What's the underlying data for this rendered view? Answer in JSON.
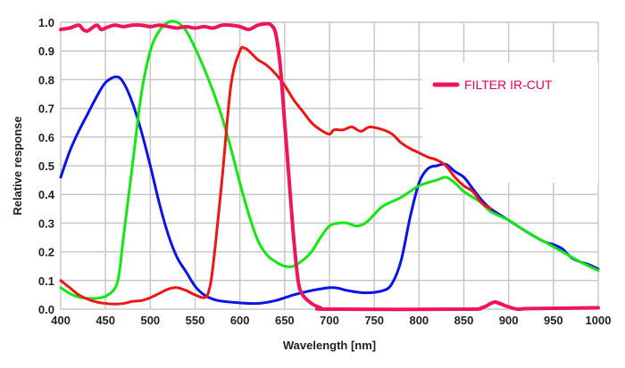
{
  "chart_data": {
    "type": "line",
    "title": "",
    "xlabel": "Wavelength [nm]",
    "ylabel": "Relative response",
    "xlim": [
      400,
      1000
    ],
    "ylim": [
      0,
      1.0
    ],
    "xticks": [
      "400",
      "450",
      "500",
      "550",
      "600",
      "650",
      "700",
      "750",
      "800",
      "850",
      "900",
      "950",
      "1000"
    ],
    "yticks": [
      "0.0",
      "0.1",
      "0.2",
      "0.3",
      "0.4",
      "0.5",
      "0.6",
      "0.7",
      "0.8",
      "0.9",
      "1.0"
    ],
    "grid": true,
    "legend": {
      "placement": "top-right",
      "entries": [
        {
          "label": "FILTER IR-CUT",
          "color": "#f0145a"
        }
      ]
    },
    "series": [
      {
        "name": "blue",
        "color": "#0a14e6",
        "points": [
          [
            400,
            0.46
          ],
          [
            410,
            0.55
          ],
          [
            420,
            0.62
          ],
          [
            430,
            0.68
          ],
          [
            440,
            0.74
          ],
          [
            450,
            0.79
          ],
          [
            462,
            0.81
          ],
          [
            470,
            0.79
          ],
          [
            480,
            0.72
          ],
          [
            490,
            0.62
          ],
          [
            500,
            0.5
          ],
          [
            510,
            0.37
          ],
          [
            520,
            0.26
          ],
          [
            530,
            0.18
          ],
          [
            540,
            0.13
          ],
          [
            550,
            0.08
          ],
          [
            560,
            0.05
          ],
          [
            570,
            0.035
          ],
          [
            580,
            0.028
          ],
          [
            600,
            0.022
          ],
          [
            620,
            0.02
          ],
          [
            640,
            0.03
          ],
          [
            660,
            0.05
          ],
          [
            680,
            0.065
          ],
          [
            700,
            0.075
          ],
          [
            710,
            0.073
          ],
          [
            720,
            0.065
          ],
          [
            740,
            0.057
          ],
          [
            760,
            0.065
          ],
          [
            770,
            0.09
          ],
          [
            780,
            0.17
          ],
          [
            790,
            0.32
          ],
          [
            800,
            0.44
          ],
          [
            810,
            0.49
          ],
          [
            820,
            0.5
          ],
          [
            830,
            0.505
          ],
          [
            840,
            0.48
          ],
          [
            850,
            0.46
          ],
          [
            860,
            0.42
          ],
          [
            870,
            0.38
          ],
          [
            880,
            0.35
          ],
          [
            900,
            0.31
          ],
          [
            920,
            0.27
          ],
          [
            940,
            0.235
          ],
          [
            950,
            0.225
          ],
          [
            960,
            0.21
          ],
          [
            970,
            0.18
          ],
          [
            980,
            0.165
          ],
          [
            990,
            0.155
          ],
          [
            1000,
            0.14
          ]
        ]
      },
      {
        "name": "green",
        "color": "#14e614",
        "points": [
          [
            400,
            0.075
          ],
          [
            410,
            0.055
          ],
          [
            420,
            0.042
          ],
          [
            430,
            0.038
          ],
          [
            440,
            0.038
          ],
          [
            450,
            0.045
          ],
          [
            460,
            0.07
          ],
          [
            465,
            0.12
          ],
          [
            470,
            0.25
          ],
          [
            480,
            0.5
          ],
          [
            490,
            0.75
          ],
          [
            500,
            0.9
          ],
          [
            510,
            0.97
          ],
          [
            520,
            1.0
          ],
          [
            530,
            1.0
          ],
          [
            540,
            0.97
          ],
          [
            550,
            0.91
          ],
          [
            560,
            0.84
          ],
          [
            570,
            0.76
          ],
          [
            580,
            0.67
          ],
          [
            590,
            0.56
          ],
          [
            600,
            0.44
          ],
          [
            610,
            0.33
          ],
          [
            620,
            0.24
          ],
          [
            630,
            0.19
          ],
          [
            640,
            0.165
          ],
          [
            650,
            0.15
          ],
          [
            660,
            0.15
          ],
          [
            670,
            0.17
          ],
          [
            680,
            0.2
          ],
          [
            690,
            0.25
          ],
          [
            700,
            0.29
          ],
          [
            710,
            0.3
          ],
          [
            720,
            0.3
          ],
          [
            730,
            0.29
          ],
          [
            740,
            0.3
          ],
          [
            750,
            0.33
          ],
          [
            760,
            0.36
          ],
          [
            780,
            0.39
          ],
          [
            800,
            0.43
          ],
          [
            820,
            0.45
          ],
          [
            830,
            0.46
          ],
          [
            840,
            0.44
          ],
          [
            850,
            0.41
          ],
          [
            860,
            0.39
          ],
          [
            870,
            0.37
          ],
          [
            880,
            0.34
          ],
          [
            900,
            0.31
          ],
          [
            920,
            0.27
          ],
          [
            940,
            0.235
          ],
          [
            960,
            0.2
          ],
          [
            980,
            0.165
          ],
          [
            1000,
            0.135
          ]
        ]
      },
      {
        "name": "red",
        "color": "#f01414",
        "points": [
          [
            400,
            0.1
          ],
          [
            410,
            0.075
          ],
          [
            420,
            0.05
          ],
          [
            430,
            0.035
          ],
          [
            440,
            0.025
          ],
          [
            450,
            0.02
          ],
          [
            460,
            0.018
          ],
          [
            470,
            0.02
          ],
          [
            480,
            0.027
          ],
          [
            490,
            0.03
          ],
          [
            500,
            0.04
          ],
          [
            510,
            0.055
          ],
          [
            520,
            0.07
          ],
          [
            530,
            0.075
          ],
          [
            540,
            0.065
          ],
          [
            550,
            0.05
          ],
          [
            560,
            0.04
          ],
          [
            565,
            0.06
          ],
          [
            570,
            0.15
          ],
          [
            580,
            0.45
          ],
          [
            590,
            0.78
          ],
          [
            600,
            0.9
          ],
          [
            605,
            0.91
          ],
          [
            610,
            0.9
          ],
          [
            620,
            0.87
          ],
          [
            630,
            0.85
          ],
          [
            640,
            0.82
          ],
          [
            650,
            0.78
          ],
          [
            660,
            0.73
          ],
          [
            670,
            0.69
          ],
          [
            680,
            0.65
          ],
          [
            690,
            0.625
          ],
          [
            700,
            0.61
          ],
          [
            705,
            0.625
          ],
          [
            715,
            0.625
          ],
          [
            725,
            0.635
          ],
          [
            735,
            0.62
          ],
          [
            745,
            0.635
          ],
          [
            760,
            0.625
          ],
          [
            770,
            0.61
          ],
          [
            780,
            0.58
          ],
          [
            790,
            0.56
          ],
          [
            800,
            0.545
          ],
          [
            810,
            0.53
          ],
          [
            820,
            0.52
          ],
          [
            830,
            0.5
          ],
          [
            840,
            0.46
          ],
          [
            850,
            0.43
          ],
          [
            860,
            0.41
          ],
          [
            870,
            0.37
          ],
          [
            880,
            0.35
          ]
        ]
      },
      {
        "name": "FILTER IR-CUT",
        "color": "#f0145a",
        "points": [
          [
            400,
            0.975
          ],
          [
            410,
            0.98
          ],
          [
            420,
            0.99
          ],
          [
            425,
            0.975
          ],
          [
            430,
            0.97
          ],
          [
            440,
            0.99
          ],
          [
            445,
            0.975
          ],
          [
            450,
            0.98
          ],
          [
            460,
            0.99
          ],
          [
            470,
            0.985
          ],
          [
            480,
            0.99
          ],
          [
            490,
            0.99
          ],
          [
            500,
            0.985
          ],
          [
            510,
            0.99
          ],
          [
            520,
            0.985
          ],
          [
            530,
            0.98
          ],
          [
            540,
            0.985
          ],
          [
            550,
            0.98
          ],
          [
            560,
            0.985
          ],
          [
            570,
            0.98
          ],
          [
            580,
            0.99
          ],
          [
            590,
            0.99
          ],
          [
            600,
            0.985
          ],
          [
            610,
            0.975
          ],
          [
            620,
            0.99
          ],
          [
            630,
            0.995
          ],
          [
            635,
            0.99
          ],
          [
            640,
            0.96
          ],
          [
            645,
            0.85
          ],
          [
            650,
            0.65
          ],
          [
            655,
            0.45
          ],
          [
            660,
            0.25
          ],
          [
            665,
            0.1
          ],
          [
            670,
            0.05
          ],
          [
            680,
            0.02
          ],
          [
            690,
            0.005
          ],
          [
            700,
            0.0
          ],
          [
            850,
            0.0
          ],
          [
            870,
            0.005
          ],
          [
            880,
            0.02
          ],
          [
            885,
            0.025
          ],
          [
            890,
            0.02
          ],
          [
            900,
            0.008
          ],
          [
            910,
            0.0
          ],
          [
            920,
            0.002
          ],
          [
            950,
            0.003
          ],
          [
            1000,
            0.005
          ]
        ]
      }
    ]
  }
}
